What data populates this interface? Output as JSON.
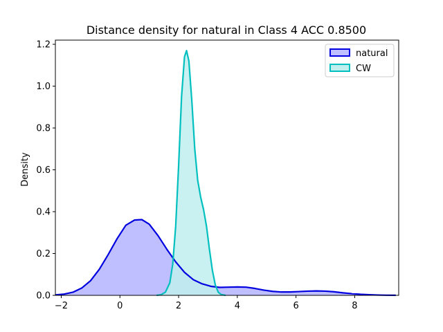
{
  "chart_data": {
    "type": "area",
    "title": "Distance density for natural in Class 4 ACC 0.8500",
    "xlabel": "",
    "ylabel": "Density",
    "xlim": [
      -2.2,
      9.5
    ],
    "ylim": [
      0,
      1.22
    ],
    "xticks": [
      -2,
      0,
      2,
      4,
      6,
      8
    ],
    "yticks": [
      0.0,
      0.2,
      0.4,
      0.6,
      0.8,
      1.0,
      1.2
    ],
    "grid": false,
    "legend_position": "top-right",
    "series": [
      {
        "name": "natural",
        "line_color": "#0000e0",
        "fill_color": "#bfbfff",
        "points": [
          [
            -2.2,
            0.002
          ],
          [
            -1.9,
            0.006
          ],
          [
            -1.6,
            0.015
          ],
          [
            -1.3,
            0.035
          ],
          [
            -1.0,
            0.07
          ],
          [
            -0.7,
            0.125
          ],
          [
            -0.4,
            0.195
          ],
          [
            -0.1,
            0.27
          ],
          [
            0.2,
            0.335
          ],
          [
            0.5,
            0.36
          ],
          [
            0.75,
            0.362
          ],
          [
            1.0,
            0.34
          ],
          [
            1.3,
            0.285
          ],
          [
            1.6,
            0.22
          ],
          [
            1.9,
            0.16
          ],
          [
            2.2,
            0.11
          ],
          [
            2.5,
            0.075
          ],
          [
            2.8,
            0.055
          ],
          [
            3.1,
            0.043
          ],
          [
            3.4,
            0.038
          ],
          [
            3.7,
            0.039
          ],
          [
            4.0,
            0.04
          ],
          [
            4.3,
            0.039
          ],
          [
            4.6,
            0.033
          ],
          [
            4.9,
            0.025
          ],
          [
            5.2,
            0.019
          ],
          [
            5.5,
            0.016
          ],
          [
            5.8,
            0.016
          ],
          [
            6.1,
            0.018
          ],
          [
            6.4,
            0.02
          ],
          [
            6.7,
            0.021
          ],
          [
            7.0,
            0.02
          ],
          [
            7.3,
            0.017
          ],
          [
            7.6,
            0.012
          ],
          [
            7.9,
            0.008
          ],
          [
            8.2,
            0.005
          ],
          [
            8.5,
            0.003
          ],
          [
            8.8,
            0.0015
          ],
          [
            9.1,
            0.0007
          ],
          [
            9.4,
            0.0003
          ]
        ]
      },
      {
        "name": "CW",
        "line_color": "#00bfbf",
        "fill_color": "#bfeeee",
        "points": [
          [
            1.25,
            0.0
          ],
          [
            1.4,
            0.003
          ],
          [
            1.55,
            0.015
          ],
          [
            1.7,
            0.06
          ],
          [
            1.8,
            0.15
          ],
          [
            1.9,
            0.33
          ],
          [
            2.0,
            0.62
          ],
          [
            2.1,
            0.95
          ],
          [
            2.2,
            1.14
          ],
          [
            2.27,
            1.17
          ],
          [
            2.35,
            1.12
          ],
          [
            2.45,
            0.93
          ],
          [
            2.55,
            0.7
          ],
          [
            2.65,
            0.55
          ],
          [
            2.75,
            0.47
          ],
          [
            2.85,
            0.41
          ],
          [
            2.95,
            0.33
          ],
          [
            3.05,
            0.22
          ],
          [
            3.15,
            0.12
          ],
          [
            3.25,
            0.05
          ],
          [
            3.35,
            0.015
          ],
          [
            3.45,
            0.004
          ],
          [
            3.6,
            0.0
          ]
        ]
      }
    ]
  }
}
